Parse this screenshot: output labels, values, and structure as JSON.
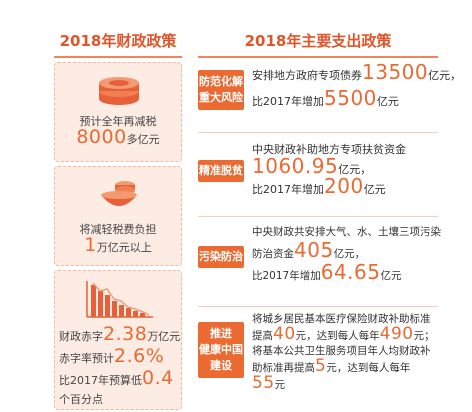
{
  "left": {
    "title": "2018年财政政策",
    "card1": {
      "line1": "预计全年再减税",
      "value": "8000",
      "unit": "多亿元"
    },
    "card2": {
      "line1": "将减轻税费负担",
      "value": "1",
      "unit": "万亿元以上"
    },
    "card3": {
      "deficit_label": "财政赤字",
      "deficit_value": "2.38",
      "deficit_unit": "万亿元",
      "rate_label": "赤字率预计",
      "rate_value": "2.6%",
      "lower_label": "比2017年预算低",
      "lower_value": "0.4",
      "lower_unit": "个百分点"
    }
  },
  "right": {
    "title": "2018年主要支出政策",
    "rows": [
      {
        "tag_lines": [
          "防范化解",
          "重大风险"
        ],
        "line1": "安排地方政府专项债券",
        "value1": "13500",
        "unit1": "亿元，",
        "line2": "比2017年增加",
        "value2": "5500",
        "unit2": "亿元"
      },
      {
        "tag_lines": [
          "精准脱贫"
        ],
        "line1": "中央财政补助地方专项扶贫资金",
        "value1": "1060.95",
        "unit1": "亿元，",
        "line2": "比2017年增加",
        "value2": "200",
        "unit2": "亿元"
      },
      {
        "tag_lines": [
          "污染防治"
        ],
        "line1": "中央财政共安排大气、水、土壤三项污染",
        "line1b": "防治资金",
        "value1": "405",
        "unit1": "亿元，",
        "line2": "比2017年增加",
        "value2": "64.65",
        "unit2": "亿元"
      },
      {
        "tag_lines": [
          "推进",
          "健康中国",
          "建设"
        ],
        "line1": "将城乡居民基本医疗保险财政补助标准",
        "line1b": "提高",
        "value1": "40",
        "unit1": "元，达到每人每年",
        "value1b": "490",
        "unit1b": "元；",
        "line2": "将基本公共卫生服务项目年人均财政补",
        "line2b": "助标准再提高",
        "value2": "5",
        "unit2": "元，达到每人每年",
        "value3": "55",
        "unit3": "元"
      }
    ]
  },
  "colors": {
    "accent": "#ea6a32",
    "card_bg": "#fdece4",
    "title": "#e2552a"
  },
  "icons": [
    "coins-stack-icon",
    "bowl-coins-icon",
    "declining-bar-chart-icon"
  ]
}
